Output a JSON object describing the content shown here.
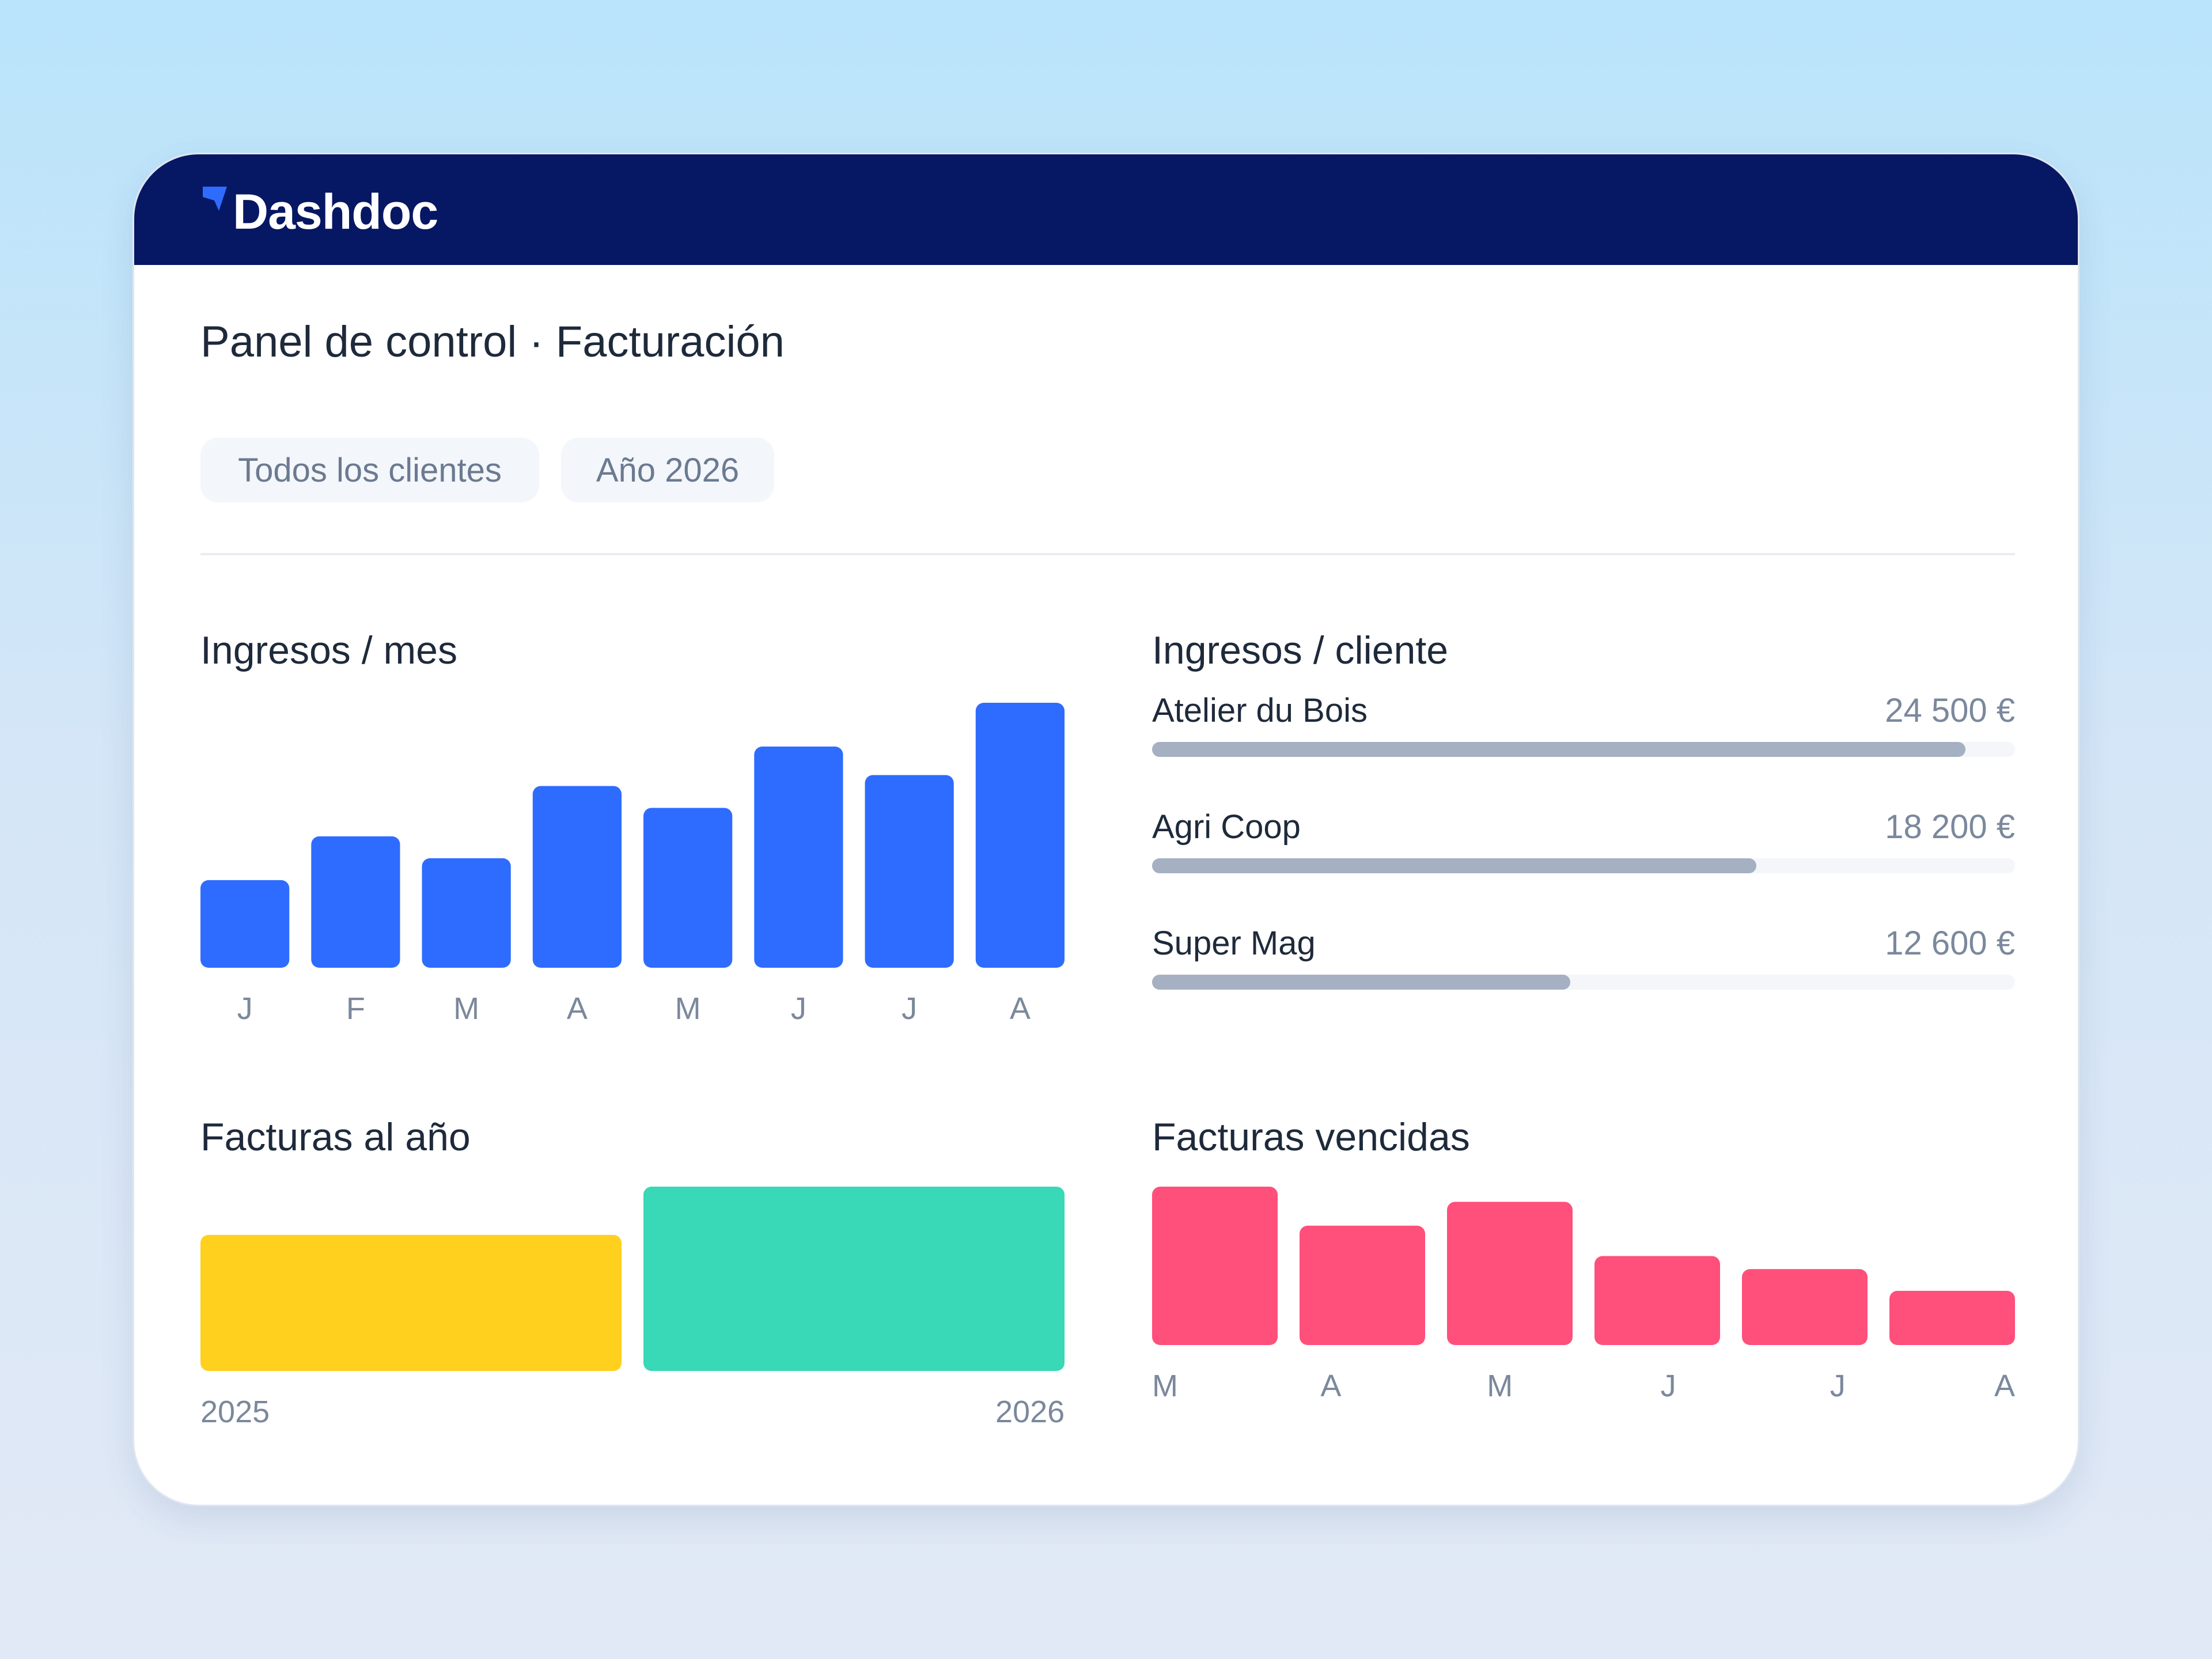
{
  "app": {
    "name": "Dashdoc",
    "brand_color": "#061764",
    "accent_color": "#2e6cff"
  },
  "page": {
    "title": "Panel de control · Facturación"
  },
  "filters": [
    {
      "label": "Todos los clientes"
    },
    {
      "label": "Año 2026"
    }
  ],
  "sections": {
    "monthly_revenue": {
      "title": "Ingresos / mes"
    },
    "revenue_per_client": {
      "title": "Ingresos / cliente"
    },
    "invoices_per_year": {
      "title": "Facturas al año"
    },
    "overdue_invoices": {
      "title": "Facturas vencidas"
    }
  },
  "chart_data": [
    {
      "id": "monthly_revenue",
      "type": "bar",
      "categories": [
        "J",
        "F",
        "M",
        "A",
        "M",
        "J",
        "J",
        "A"
      ],
      "values": [
        40,
        60,
        50,
        83,
        73,
        101,
        88,
        121
      ],
      "ylim": [
        0,
        121
      ],
      "color": "#2e6cff",
      "grid": false
    },
    {
      "id": "revenue_per_client",
      "type": "bar",
      "orientation": "horizontal",
      "categories": [
        "Atelier du Bois",
        "Agri Coop",
        "Super Mag"
      ],
      "values": [
        24500,
        18200,
        12600
      ],
      "value_labels": [
        "24 500 €",
        "18 200 €",
        "12 600 €"
      ],
      "xlim": [
        0,
        26000
      ],
      "color": "#a5b0c2"
    },
    {
      "id": "invoices_per_year",
      "type": "bar",
      "categories": [
        "2025",
        "2026"
      ],
      "values": [
        62,
        84
      ],
      "ylim": [
        0,
        84
      ],
      "colors": [
        "#ffd01e",
        "#39d8b6"
      ]
    },
    {
      "id": "overdue_invoices",
      "type": "bar",
      "categories": [
        "M",
        "A",
        "M",
        "J",
        "J",
        "A"
      ],
      "values": [
        73,
        55,
        66,
        41,
        35,
        25
      ],
      "ylim": [
        0,
        73
      ],
      "color": "#ff4f7b"
    }
  ]
}
